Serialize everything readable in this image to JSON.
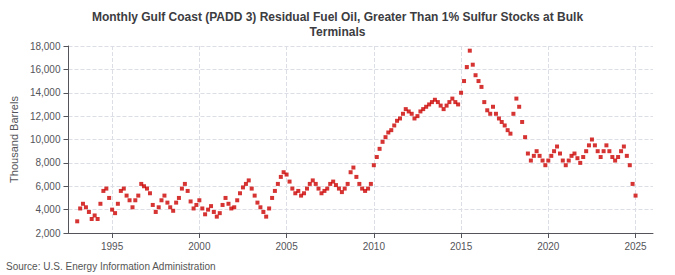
{
  "chart_data": {
    "type": "scatter",
    "title": "Monthly Gulf Coast (PADD 3) Residual Fuel Oil, Greater Than 1% Sulfur Stocks at Bulk\nTerminals",
    "ylabel": "Thousand Barrels",
    "source": "Source: U.S. Energy Information Administration",
    "color": "#cc0000",
    "marker": "square",
    "grid": true,
    "xlim": [
      1992.5,
      2026.0
    ],
    "xticks": [
      1995,
      2000,
      2005,
      2010,
      2015,
      2020,
      2025
    ],
    "ylim": [
      2000,
      18000
    ],
    "yticks": [
      {
        "value": 2000,
        "label": "2,000"
      },
      {
        "value": 4000,
        "label": "4,000"
      },
      {
        "value": 6000,
        "label": "6,000"
      },
      {
        "value": 8000,
        "label": "8,000"
      },
      {
        "value": 10000,
        "label": "10,000"
      },
      {
        "value": 12000,
        "label": "12,000"
      },
      {
        "value": 14000,
        "label": "14,000"
      },
      {
        "value": 16000,
        "label": "16,000"
      },
      {
        "value": 18000,
        "label": "18,000"
      }
    ],
    "x": [
      1993.0,
      1993.17,
      1993.33,
      1993.5,
      1993.67,
      1993.83,
      1994.0,
      1994.17,
      1994.33,
      1994.5,
      1994.67,
      1994.83,
      1995.0,
      1995.17,
      1995.33,
      1995.5,
      1995.67,
      1995.83,
      1996.0,
      1996.17,
      1996.33,
      1996.5,
      1996.67,
      1996.83,
      1997.0,
      1997.17,
      1997.33,
      1997.5,
      1997.67,
      1997.83,
      1998.0,
      1998.17,
      1998.33,
      1998.5,
      1998.67,
      1998.83,
      1999.0,
      1999.17,
      1999.33,
      1999.5,
      1999.67,
      1999.83,
      2000.0,
      2000.17,
      2000.33,
      2000.5,
      2000.67,
      2000.83,
      2001.0,
      2001.17,
      2001.33,
      2001.5,
      2001.67,
      2001.83,
      2002.0,
      2002.17,
      2002.33,
      2002.5,
      2002.67,
      2002.83,
      2003.0,
      2003.17,
      2003.33,
      2003.5,
      2003.67,
      2003.83,
      2004.0,
      2004.17,
      2004.33,
      2004.5,
      2004.67,
      2004.83,
      2005.0,
      2005.17,
      2005.33,
      2005.5,
      2005.67,
      2005.83,
      2006.0,
      2006.17,
      2006.33,
      2006.5,
      2006.67,
      2006.83,
      2007.0,
      2007.17,
      2007.33,
      2007.5,
      2007.67,
      2007.83,
      2008.0,
      2008.17,
      2008.33,
      2008.5,
      2008.67,
      2008.83,
      2009.0,
      2009.17,
      2009.33,
      2009.5,
      2009.67,
      2009.83,
      2010.0,
      2010.17,
      2010.33,
      2010.5,
      2010.67,
      2010.83,
      2011.0,
      2011.17,
      2011.33,
      2011.5,
      2011.67,
      2011.83,
      2012.0,
      2012.17,
      2012.33,
      2012.5,
      2012.67,
      2012.83,
      2013.0,
      2013.17,
      2013.33,
      2013.5,
      2013.67,
      2013.83,
      2014.0,
      2014.17,
      2014.33,
      2014.5,
      2014.67,
      2014.83,
      2015.0,
      2015.17,
      2015.33,
      2015.5,
      2015.67,
      2015.83,
      2016.0,
      2016.17,
      2016.33,
      2016.5,
      2016.67,
      2016.83,
      2017.0,
      2017.17,
      2017.33,
      2017.5,
      2017.67,
      2017.83,
      2018.0,
      2018.17,
      2018.33,
      2018.5,
      2018.67,
      2018.83,
      2019.0,
      2019.17,
      2019.33,
      2019.5,
      2019.67,
      2019.83,
      2020.0,
      2020.17,
      2020.33,
      2020.5,
      2020.67,
      2020.83,
      2021.0,
      2021.17,
      2021.33,
      2021.5,
      2021.67,
      2021.83,
      2022.0,
      2022.17,
      2022.33,
      2022.5,
      2022.67,
      2022.83,
      2023.0,
      2023.17,
      2023.33,
      2023.5,
      2023.67,
      2023.83,
      2024.0,
      2024.17,
      2024.33,
      2024.5,
      2024.67,
      2024.83,
      2025.0
    ],
    "values": [
      3000,
      4100,
      4500,
      4200,
      3800,
      3200,
      3500,
      3200,
      4500,
      5600,
      5800,
      5000,
      4000,
      3700,
      4500,
      5600,
      5800,
      5200,
      4800,
      4200,
      4800,
      5200,
      6200,
      6000,
      5800,
      5400,
      4400,
      3800,
      4200,
      4800,
      5200,
      4600,
      4200,
      3900,
      4600,
      5000,
      5800,
      6200,
      5600,
      4700,
      4100,
      4400,
      4800,
      4100,
      3600,
      4000,
      4300,
      3800,
      3400,
      3700,
      4400,
      5000,
      4500,
      4100,
      4200,
      4800,
      5400,
      5900,
      6200,
      6500,
      5800,
      5200,
      4600,
      4200,
      3800,
      3400,
      4100,
      5000,
      5600,
      6200,
      6800,
      7200,
      7000,
      6400,
      5800,
      5400,
      5600,
      5200,
      5400,
      5800,
      6200,
      6500,
      6200,
      5800,
      5400,
      5600,
      5800,
      6200,
      6400,
      6100,
      5800,
      5500,
      5800,
      6200,
      7200,
      7600,
      6800,
      6200,
      5800,
      5600,
      5800,
      6200,
      7800,
      8500,
      9200,
      9800,
      10200,
      10600,
      10800,
      11200,
      11600,
      11800,
      12200,
      12600,
      12400,
      12200,
      11800,
      12000,
      12400,
      12600,
      12800,
      13000,
      13200,
      13400,
      13200,
      12900,
      12600,
      12900,
      13200,
      13500,
      13200,
      13000,
      14000,
      15000,
      16200,
      17600,
      16400,
      15500,
      15000,
      14500,
      13200,
      12500,
      12200,
      12800,
      12200,
      11800,
      11500,
      11200,
      10800,
      10500,
      12200,
      13500,
      12800,
      11500,
      10200,
      8800,
      8200,
      8600,
      9000,
      8600,
      8200,
      7800,
      8200,
      8600,
      9000,
      9400,
      8800,
      8200,
      7800,
      8200,
      8600,
      8800,
      8400,
      8000,
      8500,
      9000,
      9500,
      10000,
      9500,
      9000,
      8500,
      9000,
      9500,
      9000,
      8500,
      8200,
      8500,
      9000,
      9400,
      8600,
      7800,
      6200,
      5200
    ]
  }
}
